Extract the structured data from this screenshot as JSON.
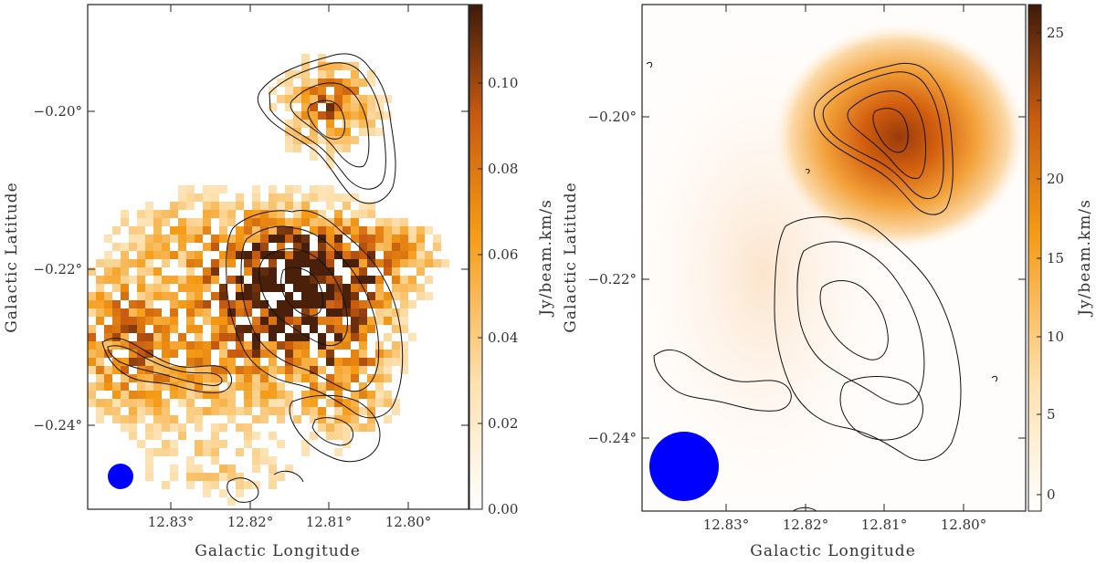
{
  "panels": [
    {
      "id": "left",
      "xlabel": "Galactic Longitude",
      "ylabel": "Galactic Latitude",
      "xticks": [
        "12.83°",
        "12.82°",
        "12.81°",
        "12.80°"
      ],
      "yticks": [
        "−0.20°",
        "−0.22°",
        "−0.24°"
      ],
      "colorbar_label": "Jy/beam.km/s",
      "colorbar_ticks": [
        "0.00",
        "0.02",
        "0.04",
        "0.06",
        "0.08",
        "0.10"
      ],
      "colorbar_range": [
        0.0,
        0.118
      ],
      "beam_marker": "blue-circle"
    },
    {
      "id": "right",
      "xlabel": "Galactic Longitude",
      "ylabel": "Galactic Latitude",
      "xticks": [
        "12.83°",
        "12.82°",
        "12.81°",
        "12.80°"
      ],
      "yticks": [
        "−0.20°",
        "−0.22°",
        "−0.24°"
      ],
      "colorbar_label": "Jy/beam.km/s",
      "colorbar_ticks": [
        "0",
        "5",
        "10",
        "15",
        "20",
        "25"
      ],
      "colorbar_range": [
        -1,
        27
      ],
      "beam_marker": "blue-circle"
    }
  ],
  "colors": {
    "map_low": "#ffffff",
    "map_mid": "#f08c0a",
    "map_high": "#3d1a0a",
    "contour": "#111111",
    "beam": "#0000ff"
  }
}
